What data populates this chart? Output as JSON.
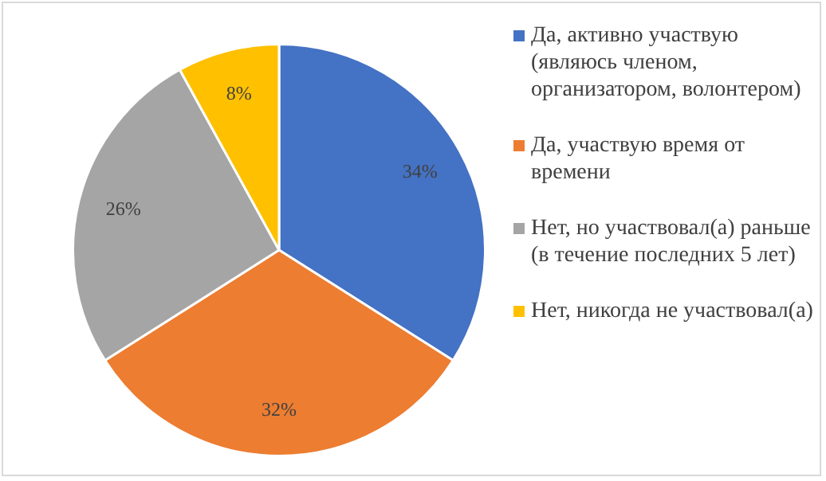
{
  "chart_data": {
    "type": "pie",
    "categories": [
      "Да, активно участвую (являюсь членом, организатором, волонтером)",
      "Да, участвую время от времени",
      "Нет, но участвовал(а) раньше (в течение последних 5 лет)",
      "Нет, никогда не участвовал(а)"
    ],
    "values": [
      34,
      32,
      26,
      8
    ],
    "colors": [
      "#4472c4",
      "#ed7d31",
      "#a5a5a5",
      "#ffc000"
    ],
    "value_labels": [
      "34%",
      "32%",
      "26%",
      "8%"
    ],
    "legend": "right"
  }
}
